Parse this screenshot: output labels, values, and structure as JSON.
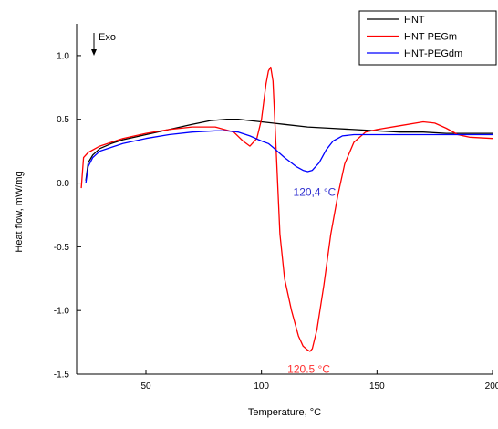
{
  "chart_data": {
    "type": "line",
    "title": "",
    "xlabel": "Temperature, °C",
    "ylabel": "Heat flow, mW/mg",
    "xlim": [
      20,
      200
    ],
    "ylim": [
      -1.5,
      1.25
    ],
    "x_ticks": [
      50,
      100,
      150,
      200
    ],
    "y_ticks": [
      -1.5,
      -1.0,
      -0.5,
      0.0,
      0.5,
      1.0
    ],
    "y_tick_labels": [
      "-1.5",
      "-1.0",
      "-0.5",
      "0.0",
      "0.5",
      "1.0"
    ],
    "x_tick_labels": [
      "50",
      "100",
      "150",
      "200"
    ],
    "grid": false,
    "legend_position": "top-right",
    "exo_label": "Exo",
    "series": [
      {
        "name": "HNT",
        "color": "#000000",
        "x": [
          24,
          25,
          27,
          30,
          35,
          40,
          50,
          60,
          70,
          78,
          85,
          90,
          95,
          100,
          105,
          110,
          120,
          130,
          140,
          150,
          160,
          170,
          180,
          190,
          200
        ],
        "y": [
          0.02,
          0.16,
          0.22,
          0.27,
          0.31,
          0.34,
          0.38,
          0.42,
          0.46,
          0.49,
          0.5,
          0.5,
          0.49,
          0.48,
          0.47,
          0.46,
          0.44,
          0.43,
          0.42,
          0.41,
          0.4,
          0.4,
          0.39,
          0.39,
          0.39
        ]
      },
      {
        "name": "HNT-PEGm",
        "color": "#ff0000",
        "x": [
          22,
          23,
          25,
          30,
          40,
          50,
          60,
          70,
          80,
          88,
          92,
          95,
          98,
          100,
          102,
          103,
          104,
          105,
          106,
          108,
          110,
          113,
          116,
          118,
          120,
          121,
          122,
          124,
          127,
          130,
          133,
          136,
          140,
          145,
          150,
          160,
          170,
          175,
          180,
          185,
          190,
          200
        ],
        "y": [
          -0.04,
          0.2,
          0.24,
          0.29,
          0.35,
          0.39,
          0.42,
          0.44,
          0.44,
          0.4,
          0.33,
          0.29,
          0.35,
          0.5,
          0.78,
          0.88,
          0.91,
          0.8,
          0.4,
          -0.4,
          -0.75,
          -1.0,
          -1.2,
          -1.28,
          -1.31,
          -1.32,
          -1.3,
          -1.15,
          -0.8,
          -0.4,
          -0.1,
          0.15,
          0.32,
          0.4,
          0.42,
          0.45,
          0.48,
          0.47,
          0.43,
          0.38,
          0.36,
          0.35
        ]
      },
      {
        "name": "HNT-PEGdm",
        "color": "#0000ff",
        "x": [
          24,
          25,
          27,
          30,
          40,
          50,
          60,
          70,
          80,
          85,
          90,
          95,
          100,
          103,
          105,
          110,
          115,
          118,
          120,
          122,
          125,
          128,
          131,
          135,
          140,
          150,
          160,
          170,
          180,
          190,
          200
        ],
        "y": [
          0.0,
          0.13,
          0.2,
          0.25,
          0.31,
          0.35,
          0.38,
          0.4,
          0.41,
          0.41,
          0.4,
          0.37,
          0.33,
          0.31,
          0.28,
          0.2,
          0.13,
          0.1,
          0.09,
          0.1,
          0.16,
          0.26,
          0.33,
          0.37,
          0.38,
          0.38,
          0.38,
          0.38,
          0.38,
          0.38,
          0.38
        ]
      }
    ],
    "annotations": [
      {
        "text": "120,4 °C",
        "x": 123,
        "y": 0.0,
        "color": "#3030d0"
      },
      {
        "text": "120.5 °C",
        "x": 120.5,
        "y": -1.39,
        "color": "#ff3030"
      }
    ]
  }
}
